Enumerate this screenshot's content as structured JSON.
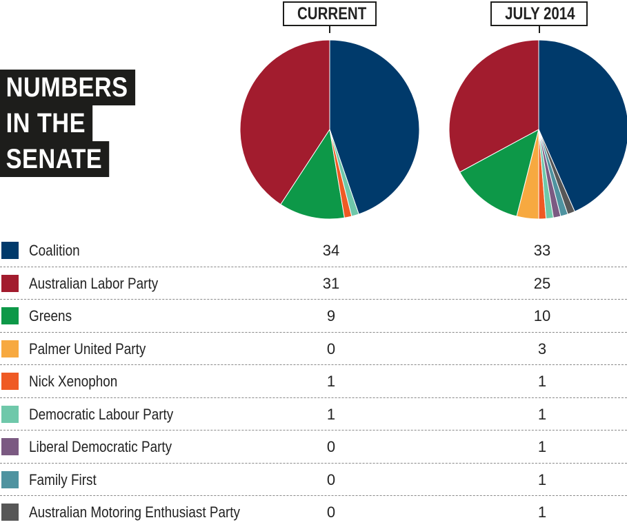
{
  "title_lines": [
    "NUMBERS",
    "IN THE",
    "SENATE"
  ],
  "chart_data": {
    "type": "pie",
    "pies": [
      {
        "label": "CURRENT",
        "values": [
          34,
          31,
          9,
          0,
          1,
          1,
          0,
          0,
          0
        ]
      },
      {
        "label": "JULY 2014",
        "values": [
          33,
          25,
          10,
          3,
          1,
          1,
          1,
          1,
          1
        ]
      }
    ],
    "legend_placement": "bottom",
    "parties": [
      {
        "name": "Coalition",
        "color": "#003a6b",
        "current": "34",
        "july": "33"
      },
      {
        "name": "Australian Labor Party",
        "color": "#a21c2e",
        "current": "31",
        "july": "25"
      },
      {
        "name": "Greens",
        "color": "#0d9848",
        "current": "9",
        "july": "10"
      },
      {
        "name": "Palmer United Party",
        "color": "#f7a940",
        "current": "0",
        "july": "3"
      },
      {
        "name": "Nick Xenophon",
        "color": "#ef5a24",
        "current": "1",
        "july": "1"
      },
      {
        "name": "Democratic Labour Party",
        "color": "#6fc8aa",
        "current": "1",
        "july": "1"
      },
      {
        "name": "Liberal Democratic Party",
        "color": "#7b5a82",
        "current": "0",
        "july": "1"
      },
      {
        "name": "Family First",
        "color": "#4f93a0",
        "current": "0",
        "july": "1"
      },
      {
        "name": "Australian Motoring Enthusiast Party",
        "color": "#575757",
        "current": "0",
        "july": "1"
      }
    ]
  }
}
